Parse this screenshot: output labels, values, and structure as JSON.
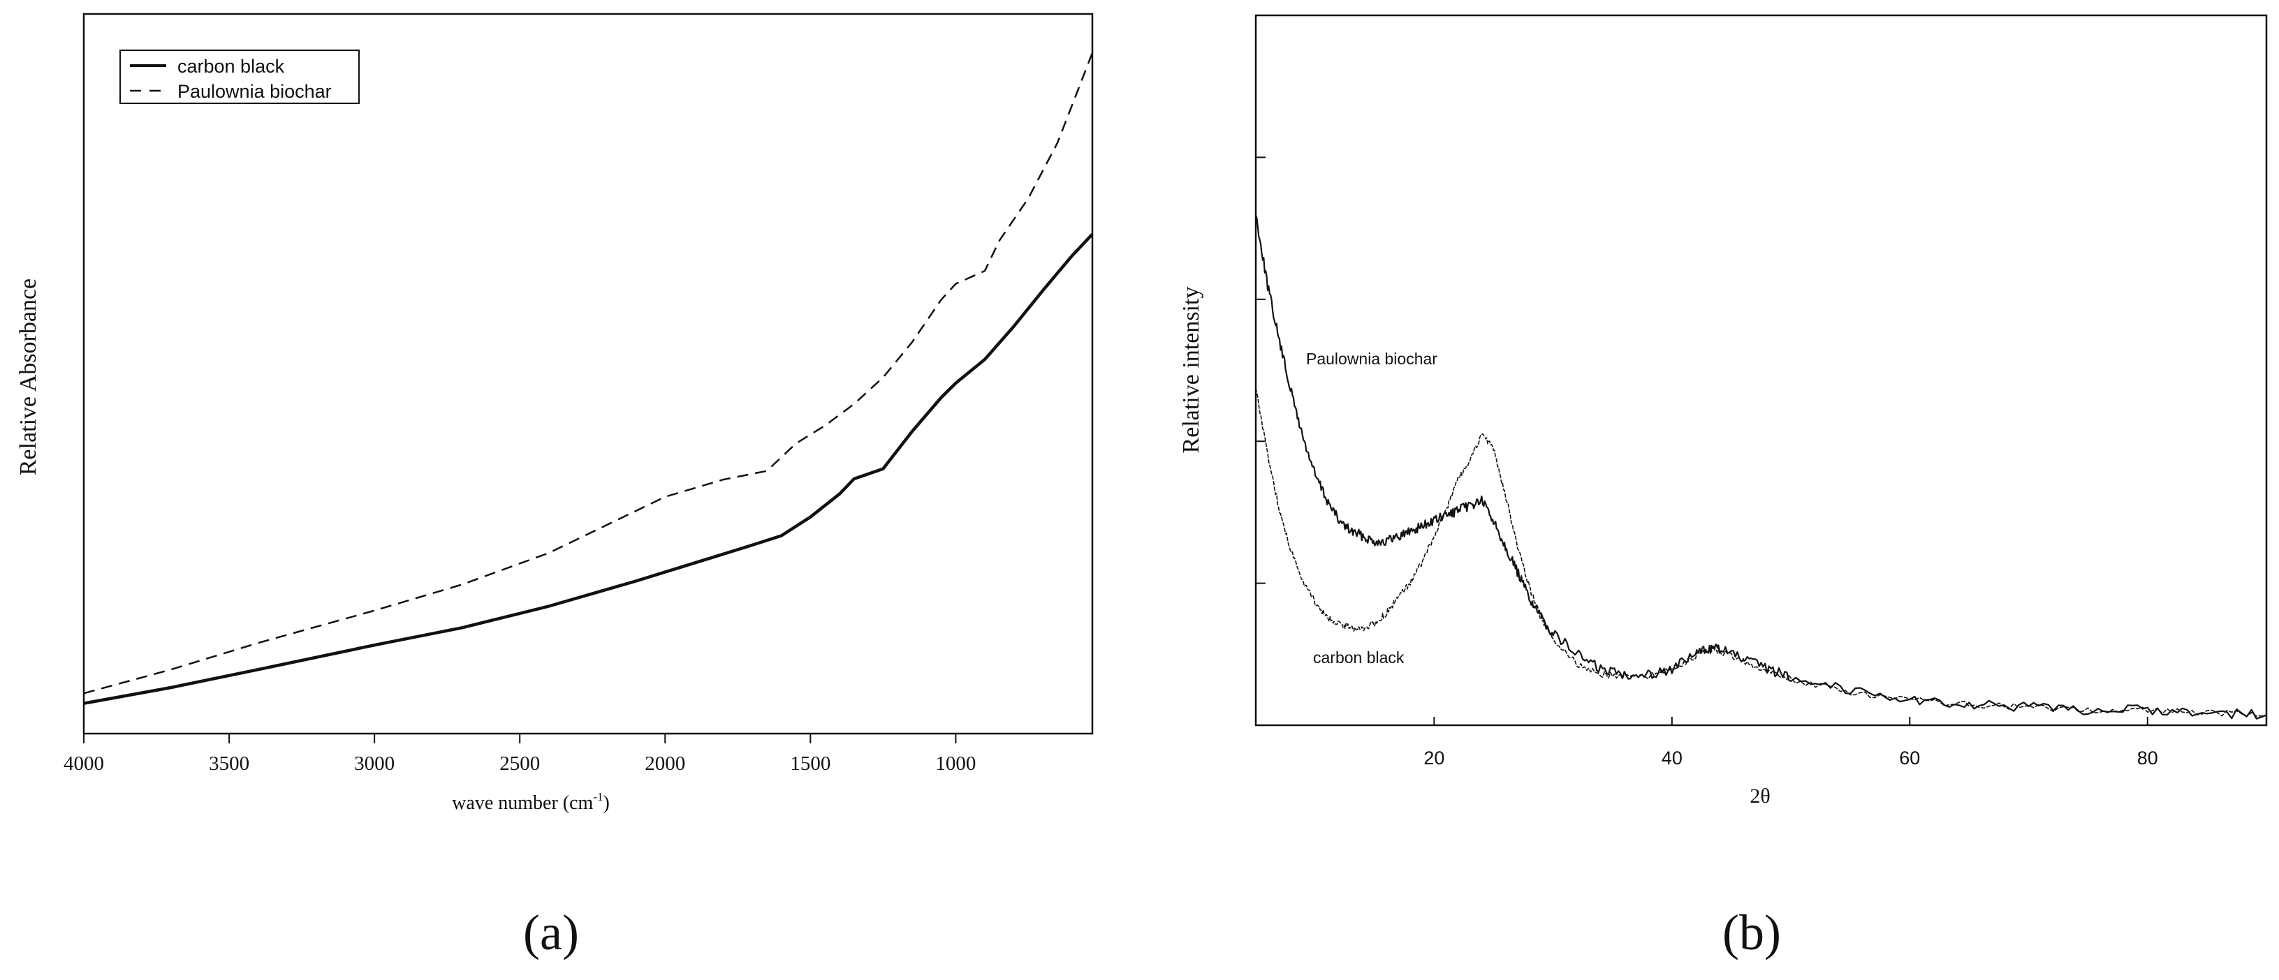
{
  "panels": [
    {
      "panel_label": "(a)",
      "xlabel_main": "wave number (cm",
      "xlabel_sup": "-1",
      "xlabel_close": ")",
      "ylabel": "Relative Absorbance"
    },
    {
      "panel_label": "(b)",
      "xlabel": "2θ",
      "ylabel": "Relative intensity"
    }
  ],
  "chart_data": [
    {
      "type": "line",
      "title": "",
      "xlabel": "wave number (cm-1)",
      "ylabel": "Relative Absorbance",
      "xlim": [
        4000,
        530
      ],
      "ylim": [
        0,
        100
      ],
      "x_reversed": true,
      "x_ticks": [
        4000,
        3500,
        3000,
        2500,
        2000,
        1500,
        1000
      ],
      "y_ticks": [],
      "grid": false,
      "legend_position": "top-left",
      "series": [
        {
          "name": "carbon black",
          "line_style": "solid",
          "color": "#111111",
          "x": [
            4000,
            3700,
            3400,
            3000,
            2700,
            2400,
            2100,
            1900,
            1700,
            1600,
            1500,
            1400,
            1350,
            1250,
            1150,
            1050,
            1000,
            900,
            800,
            700,
            600,
            530
          ],
          "y": [
            4.2,
            6.4,
            8.9,
            12.3,
            14.7,
            17.7,
            21.2,
            23.7,
            26.2,
            27.5,
            30.1,
            33.3,
            35.4,
            36.8,
            42.0,
            46.7,
            48.7,
            52.0,
            56.6,
            61.6,
            66.4,
            69.4
          ]
        },
        {
          "name": "Paulownia biochar",
          "line_style": "dashed",
          "color": "#111111",
          "x": [
            4000,
            3700,
            3400,
            3000,
            2700,
            2400,
            2200,
            2000,
            1800,
            1650,
            1550,
            1450,
            1350,
            1250,
            1150,
            1050,
            1000,
            900,
            850,
            750,
            650,
            530
          ],
          "y": [
            5.6,
            8.9,
            12.6,
            17.1,
            20.7,
            25.1,
            29.0,
            32.9,
            35.3,
            36.5,
            40.3,
            42.8,
            45.8,
            49.5,
            54.4,
            60.3,
            62.5,
            64.3,
            68.5,
            74.4,
            82.1,
            94.6
          ]
        }
      ]
    },
    {
      "type": "line",
      "title": "",
      "xlabel": "2θ",
      "ylabel": "Relative intensity",
      "xlim": [
        5,
        90
      ],
      "ylim": [
        0,
        100
      ],
      "x_ticks": [
        20,
        40,
        60,
        80
      ],
      "y_ticks": [],
      "grid": false,
      "annotations": [
        "Paulownia biochar",
        "carbon black"
      ],
      "series": [
        {
          "name": "Paulownia biochar",
          "color": "#111111",
          "x": [
            5,
            6,
            7,
            8,
            9,
            10,
            11,
            12,
            13,
            14,
            15,
            16,
            17,
            18,
            19,
            20,
            21,
            22,
            23,
            24,
            25,
            26,
            27,
            28,
            29,
            30,
            32,
            34,
            36,
            38,
            40,
            42,
            43,
            44,
            46,
            48,
            50,
            55,
            60,
            65,
            70,
            75,
            80,
            85,
            90
          ],
          "y": [
            100,
            86,
            75,
            65,
            56,
            49,
            44,
            40,
            38,
            37,
            36,
            36,
            37,
            38,
            39,
            40,
            41,
            42,
            43,
            44,
            40,
            35,
            30,
            25,
            21,
            18,
            14,
            11,
            10,
            10,
            11,
            14,
            15,
            15,
            13,
            11,
            9.5,
            7,
            5,
            4,
            3.5,
            3,
            3,
            2.5,
            2
          ]
        },
        {
          "name": "carbon black",
          "color": "#111111",
          "x": [
            5,
            6,
            7,
            8,
            9,
            10,
            11,
            12,
            13,
            14,
            15,
            16,
            17,
            18,
            19,
            20,
            21,
            22,
            23,
            24,
            25,
            26,
            27,
            28,
            29,
            30,
            32,
            34,
            36,
            38,
            40,
            42,
            43,
            44,
            46,
            48,
            50,
            55,
            60,
            65,
            70,
            75,
            80,
            85,
            90
          ],
          "y": [
            66,
            53,
            42,
            34,
            28,
            24,
            21,
            20,
            19,
            19,
            20,
            22,
            25,
            28,
            32,
            37,
            42,
            48,
            52,
            57,
            54,
            45,
            35,
            27,
            21,
            17,
            12,
            10,
            9.5,
            9.5,
            11,
            13.5,
            15,
            14.5,
            12.5,
            10.5,
            9,
            6.5,
            5,
            4,
            3.5,
            3,
            3,
            2.5,
            2
          ]
        }
      ]
    }
  ]
}
